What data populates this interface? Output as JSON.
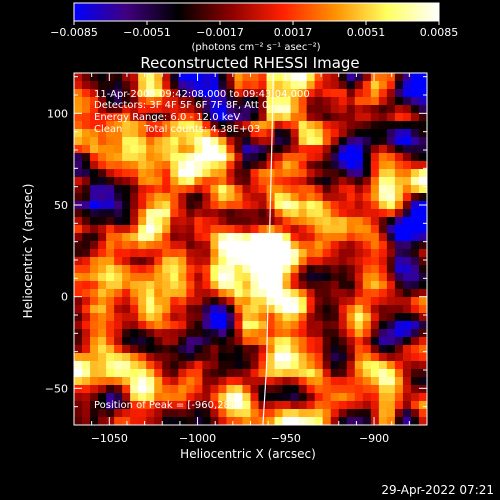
{
  "chart_data": {
    "type": "heatmap",
    "title": "Reconstructed RHESSI Image",
    "xlabel": "Heliocentric X (arcsec)",
    "ylabel": "Heliocentric Y (arcsec)",
    "xlim": [
      -1070,
      -870
    ],
    "ylim": [
      -70,
      122
    ],
    "x_ticks": [
      -1050,
      -1000,
      -950,
      -900
    ],
    "y_ticks": [
      -50,
      0,
      50,
      100
    ],
    "x_tick_labels": [
      "−1050",
      "−1000",
      "−950",
      "−900"
    ],
    "y_tick_labels": [
      "−50",
      "0",
      "50",
      "100"
    ],
    "colorbar": {
      "range": [
        -0.0085,
        0.0085
      ],
      "ticks": [
        -0.0085,
        -0.0051,
        -0.0017,
        0.0017,
        0.0051,
        0.0085
      ],
      "tick_labels": [
        "−0.0085",
        "−0.0051",
        "−0.0017",
        "0.0017",
        "0.0051",
        "0.0085"
      ],
      "unit_label": "(photons cm⁻² s⁻¹ asec⁻²)",
      "colors": [
        "#0000ff",
        "#400080",
        "#000000",
        "#8b0000",
        "#ff2000",
        "#ff9000",
        "#ffff60",
        "#ffffff"
      ]
    },
    "peak": {
      "x": -960,
      "y": 28
    },
    "limb_curve": [
      [
        -957,
        122
      ],
      [
        -958,
        80
      ],
      [
        -959,
        40
      ],
      [
        -960,
        0
      ],
      [
        -961,
        -40
      ],
      [
        -963,
        -70
      ]
    ],
    "annotations": {
      "time": "11-Apr-2005 09:42:08.000 to 09:43:04.000",
      "detectors": "Detectors: 3F 4F 5F 6F 7F 8F, Att 0",
      "energy": "Energy Range: 6.0 - 12.0 keV",
      "clean": "Clean",
      "counts": "Total counts: 4.38E+03",
      "peak_text": "Position of Peak = [-960,28]"
    }
  },
  "timestamp": "29-Apr-2022 07:21",
  "colors": {
    "background": "#000000",
    "text": "#ffffff",
    "limb": "#ffffff"
  }
}
